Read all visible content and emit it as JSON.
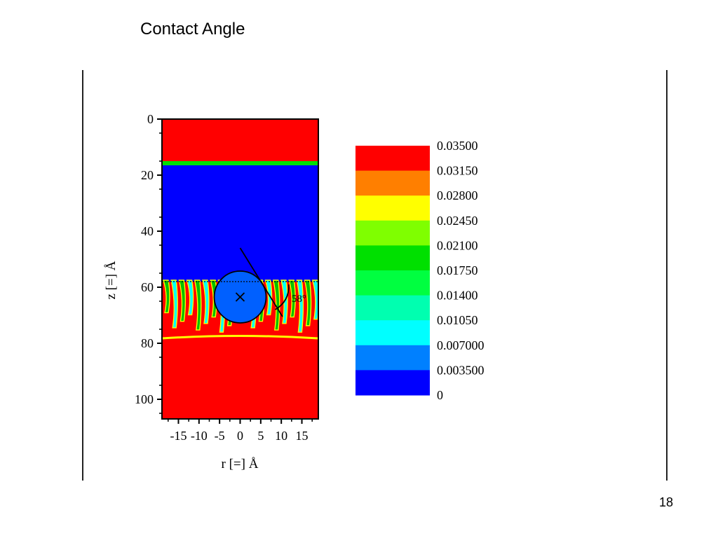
{
  "slide": {
    "title": "Contact Angle",
    "page_number": "18"
  },
  "chart_data": {
    "type": "heatmap",
    "title": "",
    "xlabel": "r [=] Å",
    "ylabel": "z [=] Å",
    "x_ticks": [
      -15,
      -10,
      -5,
      0,
      5,
      10,
      15
    ],
    "x_tick_labels": [
      "-15",
      "-10",
      "-5",
      "0",
      "5",
      "10",
      "15"
    ],
    "y_ticks": [
      0,
      20,
      40,
      60,
      80,
      100
    ],
    "xlim": [
      -19,
      19
    ],
    "ylim": [
      0,
      107
    ],
    "y_inverted": true,
    "regions": [
      {
        "z_from": 0,
        "z_to": 15,
        "value": 0.035
      },
      {
        "z_from": 15,
        "z_to": 16.5,
        "value": 0.0175
      },
      {
        "z_from": 16.5,
        "z_to": 57,
        "value": 0
      },
      {
        "z_from": 57,
        "z_to": 79,
        "value": "mixed"
      },
      {
        "z_from": 79,
        "z_to": 107,
        "value": 0.035
      }
    ],
    "interface_z": 58,
    "sphere": {
      "center_r": 0,
      "center_z": 63.5,
      "radius": 6.3
    },
    "annotation": {
      "text": "58°",
      "angle_deg": 58
    },
    "colorbar": {
      "levels": [
        "0.03500",
        "0.03150",
        "0.02800",
        "0.02450",
        "0.02100",
        "0.01750",
        "0.01400",
        "0.01050",
        "0.007000",
        "0.003500",
        "0"
      ],
      "colors": [
        "#ff0000",
        "#ff7f00",
        "#ffff00",
        "#7fff00",
        "#00e000",
        "#00ff40",
        "#00ffb0",
        "#00ffff",
        "#0080ff",
        "#0000ff"
      ]
    }
  }
}
